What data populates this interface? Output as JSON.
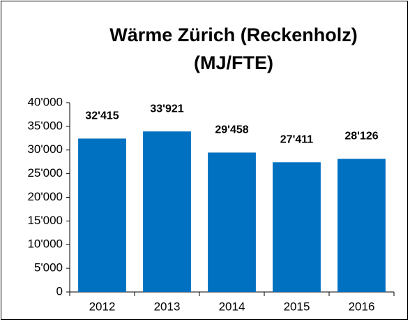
{
  "chart_data": {
    "type": "bar",
    "title": [
      "Wärme Zürich (Reckenholz)",
      "(MJ/FTE)"
    ],
    "categories": [
      "2012",
      "2013",
      "2014",
      "2015",
      "2016"
    ],
    "values": [
      32415,
      33921,
      29458,
      27411,
      28126
    ],
    "value_labels": [
      "32'415",
      "33'921",
      "29'458",
      "27'411",
      "28'126"
    ],
    "color": "#0070c0",
    "ylim": [
      0,
      40000
    ],
    "yticks": [
      0,
      {
        "value": 5000,
        "label": "5'000"
      },
      {
        "value": 10000,
        "label": "10'000"
      },
      {
        "value": 15000,
        "label": "15'000"
      },
      {
        "value": 20000,
        "label": "20'000"
      },
      {
        "value": 25000,
        "label": "25'000"
      },
      {
        "value": 30000,
        "label": "30'000"
      },
      {
        "value": 35000,
        "label": "35'000"
      },
      {
        "value": 40000,
        "label": "40'000"
      }
    ],
    "grid": false
  }
}
